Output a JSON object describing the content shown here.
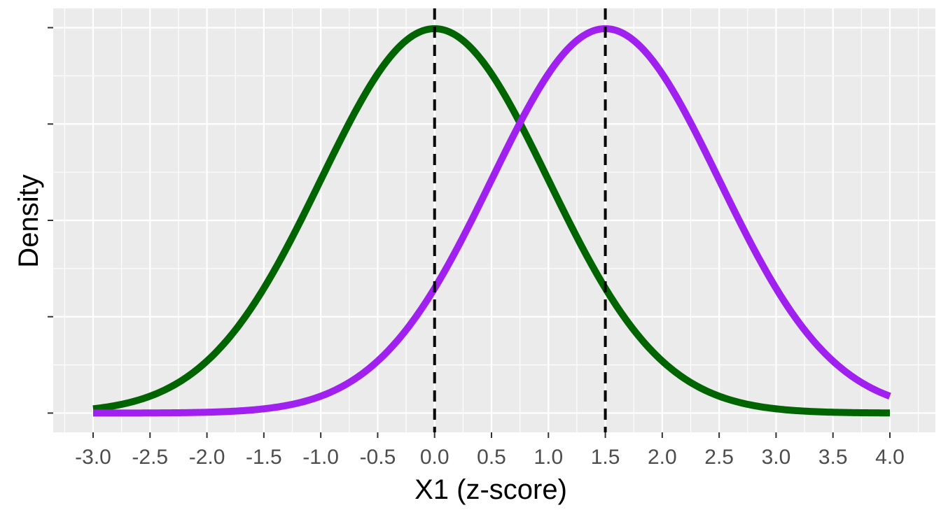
{
  "chart_data": {
    "type": "line",
    "title": "",
    "xlabel": "X1 (z-score)",
    "ylabel": "Density",
    "xlim": [
      -3.0,
      4.0
    ],
    "x_ticks": [
      -3.0,
      -2.5,
      -2.0,
      -1.5,
      -1.0,
      -0.5,
      0.0,
      0.5,
      1.0,
      1.5,
      2.0,
      2.5,
      3.0,
      3.5,
      4.0
    ],
    "x_tick_labels": [
      "-3.0",
      "-2.5",
      "-2.0",
      "-1.5",
      "-1.0",
      "-0.5",
      "0.0",
      "0.5",
      "1.0",
      "1.5",
      "2.0",
      "2.5",
      "3.0",
      "3.5",
      "4.0"
    ],
    "y_tick_labels_shown": false,
    "ylim": [
      -0.02,
      0.42
    ],
    "grid": true,
    "series": [
      {
        "distribution": "normal",
        "mean": 0.0,
        "sd": 1.0,
        "color": "#006400"
      },
      {
        "distribution": "normal",
        "mean": 1.5,
        "sd": 1.0,
        "color": "#A020F0"
      }
    ],
    "vlines": [
      {
        "x": 0.0,
        "style": "dashed",
        "color": "#000000"
      },
      {
        "x": 1.5,
        "style": "dashed",
        "color": "#000000"
      }
    ],
    "colors": {
      "panel_bg": "#EBEBEB",
      "grid": "#FFFFFF"
    }
  }
}
